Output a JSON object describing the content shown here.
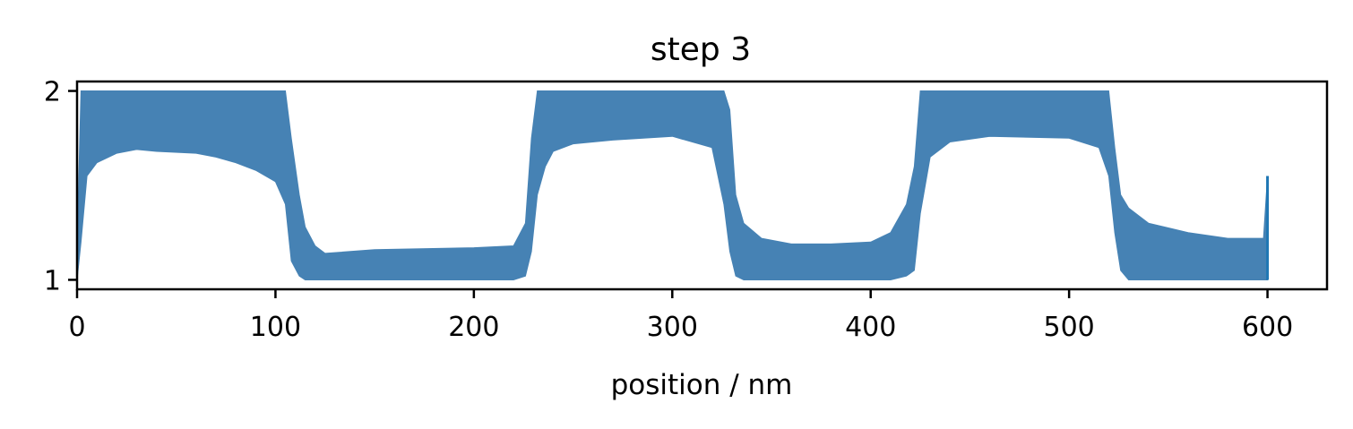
{
  "chart_data": {
    "type": "line",
    "title": "step 3",
    "xlabel": "position / nm",
    "ylabel": "",
    "xlim": [
      0,
      630
    ],
    "ylim": [
      0.95,
      2.05
    ],
    "xticks": [
      0,
      100,
      200,
      300,
      400,
      500,
      600
    ],
    "xtick_labels": [
      "0",
      "100",
      "200",
      "300",
      "400",
      "500",
      "600"
    ],
    "yticks": [
      1,
      2
    ],
    "ytick_labels": [
      "1",
      "2"
    ],
    "grid": false,
    "legend": "none",
    "colors": {
      "fill": "#4682b4",
      "line": "#1f77b4",
      "axes": "#000000"
    },
    "series": [
      {
        "style": "oscillating band between lower and upper envelopes",
        "x": [
          0,
          2,
          5,
          10,
          20,
          30,
          40,
          60,
          70,
          80,
          90,
          100,
          105,
          108,
          112,
          115,
          120,
          125,
          150,
          200,
          220,
          226,
          229,
          232,
          236,
          240,
          250,
          270,
          300,
          320,
          326,
          329,
          332,
          336,
          345,
          360,
          380,
          400,
          410,
          418,
          422,
          425,
          430,
          440,
          460,
          500,
          515,
          520,
          523,
          526,
          530,
          540,
          560,
          580,
          598,
          600
        ],
        "lower": [
          1.0,
          1.2,
          1.55,
          1.62,
          1.67,
          1.69,
          1.68,
          1.67,
          1.65,
          1.62,
          1.58,
          1.52,
          1.4,
          1.1,
          1.02,
          1.0,
          1.0,
          1.0,
          1.0,
          1.0,
          1.0,
          1.02,
          1.15,
          1.45,
          1.6,
          1.68,
          1.72,
          1.74,
          1.76,
          1.7,
          1.4,
          1.15,
          1.02,
          1.0,
          1.0,
          1.0,
          1.0,
          1.0,
          1.0,
          1.02,
          1.05,
          1.35,
          1.65,
          1.73,
          1.76,
          1.75,
          1.7,
          1.55,
          1.25,
          1.05,
          1.0,
          1.0,
          1.0,
          1.0,
          1.0,
          1.0
        ],
        "upper": [
          1.18,
          2.0,
          2.0,
          2.0,
          2.0,
          2.0,
          2.0,
          2.0,
          2.0,
          2.0,
          2.0,
          2.0,
          2.0,
          1.75,
          1.45,
          1.28,
          1.18,
          1.14,
          1.16,
          1.17,
          1.18,
          1.3,
          1.75,
          2.0,
          2.0,
          2.0,
          2.0,
          2.0,
          2.0,
          2.0,
          2.0,
          1.9,
          1.45,
          1.3,
          1.22,
          1.19,
          1.19,
          1.2,
          1.25,
          1.4,
          1.6,
          2.0,
          2.0,
          2.0,
          2.0,
          2.0,
          2.0,
          2.0,
          1.7,
          1.45,
          1.38,
          1.3,
          1.25,
          1.22,
          1.22,
          1.55
        ]
      }
    ]
  }
}
